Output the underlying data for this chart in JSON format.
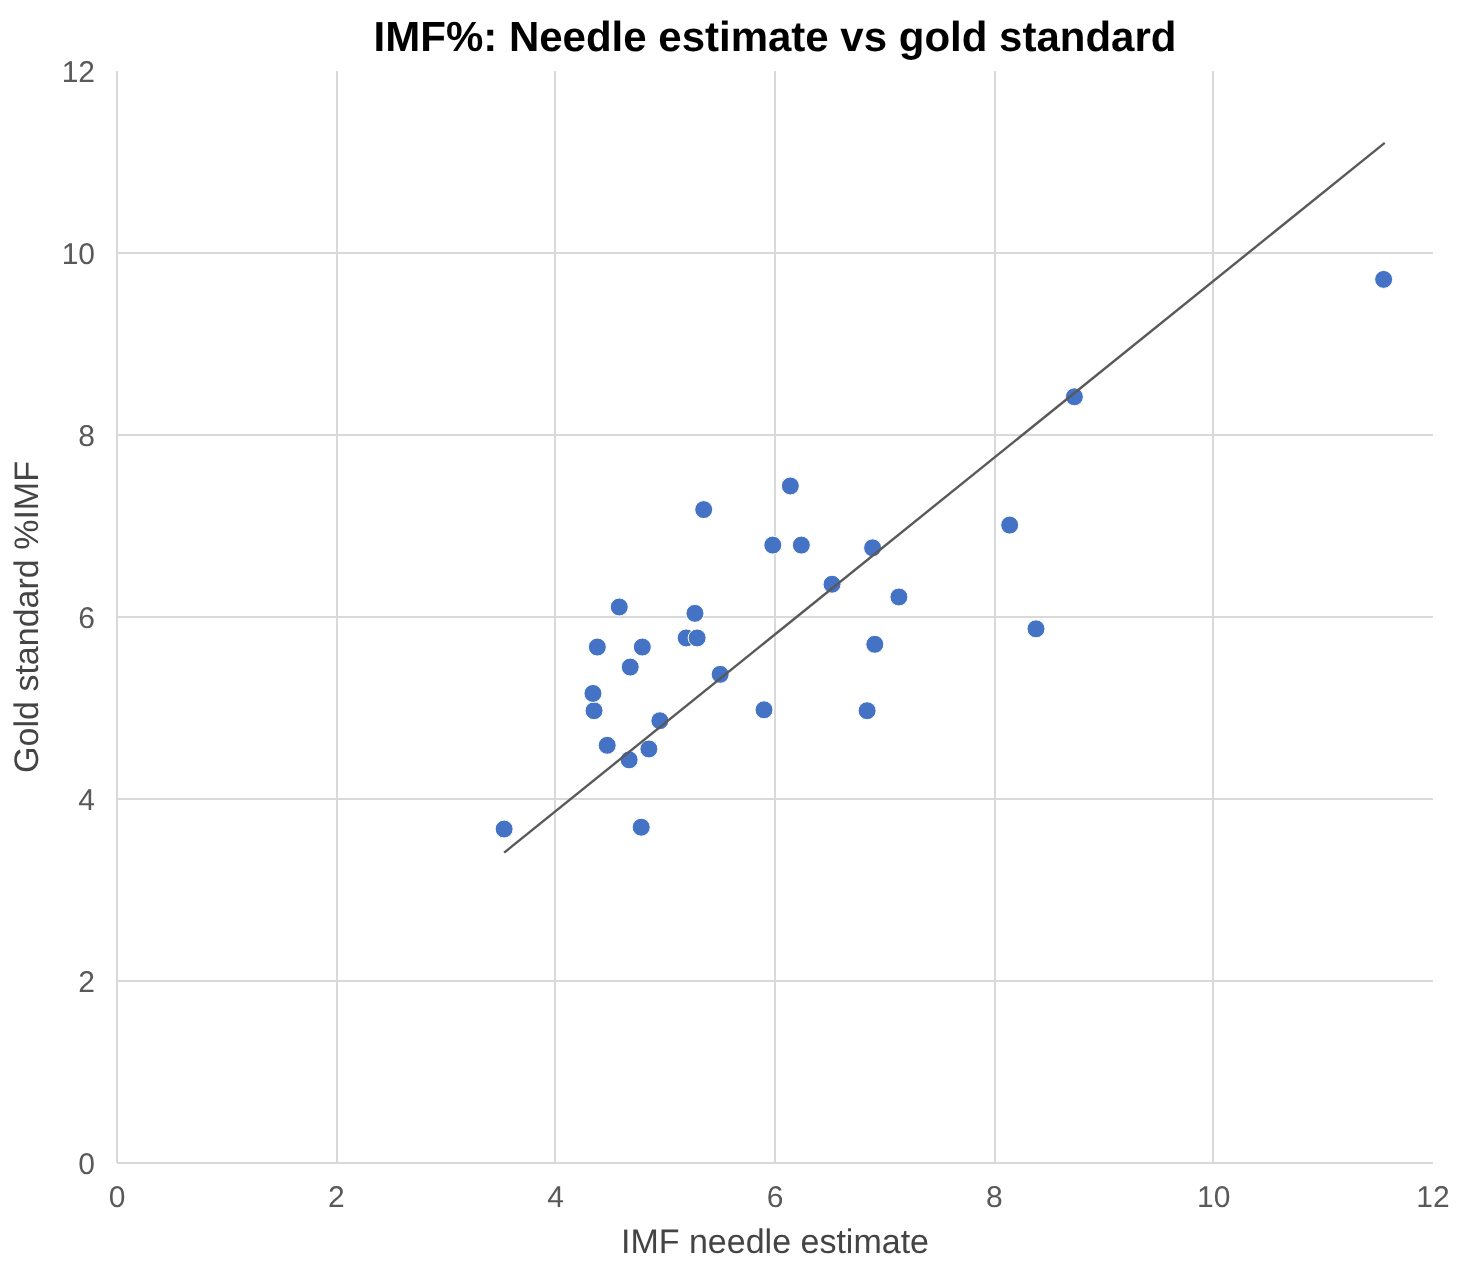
{
  "chart_data": {
    "type": "scatter",
    "title": "IMF%: Needle estimate vs gold standard",
    "xlabel": "IMF needle estimate",
    "ylabel": "Gold standard %IMF",
    "xlim": [
      0,
      12
    ],
    "ylim": [
      0,
      12
    ],
    "xticks": [
      0,
      2,
      4,
      6,
      8,
      10,
      12
    ],
    "yticks": [
      0,
      2,
      4,
      6,
      8,
      10,
      12
    ],
    "grid": true,
    "series": [
      {
        "color": "#4472c4",
        "marker": "circle",
        "x": [
          3.53,
          4.78,
          4.67,
          4.85,
          4.47,
          4.95,
          4.35,
          4.34,
          4.68,
          4.38,
          4.79,
          4.58,
          5.19,
          5.29,
          5.27,
          5.5,
          5.35,
          5.9,
          5.98,
          6.24,
          6.14,
          6.52,
          6.89,
          6.91,
          6.84,
          7.13,
          8.14,
          8.38,
          8.73,
          11.55
        ],
        "values": [
          3.67,
          3.69,
          4.43,
          4.55,
          4.59,
          4.86,
          4.97,
          5.16,
          5.45,
          5.67,
          5.67,
          6.11,
          5.77,
          5.77,
          6.04,
          5.37,
          7.18,
          4.98,
          6.79,
          6.79,
          7.44,
          6.36,
          6.76,
          5.7,
          4.97,
          6.22,
          7.01,
          5.87,
          8.42,
          9.71
        ]
      },
      {
        "color": "#595959",
        "type": "line",
        "marker": "none",
        "x": [
          3.53,
          11.56
        ],
        "values": [
          3.41,
          11.21
        ]
      }
    ]
  }
}
